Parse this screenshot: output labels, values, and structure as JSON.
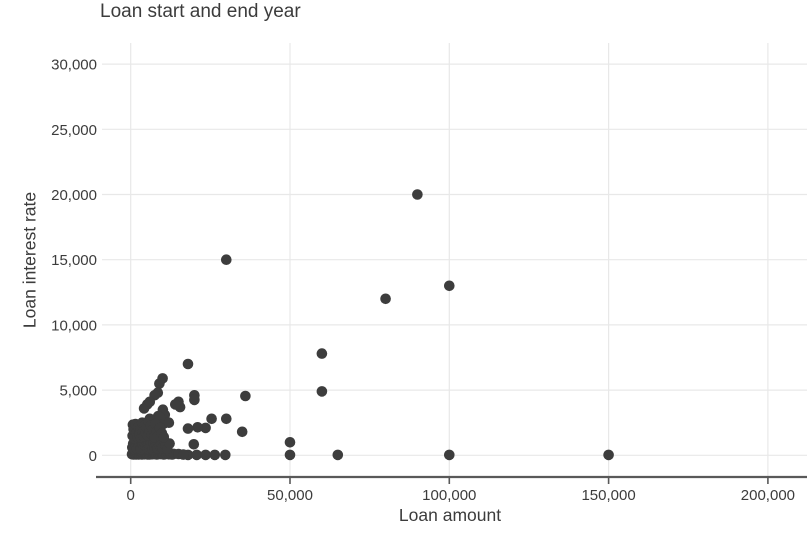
{
  "chart_data": {
    "type": "scatter",
    "title": "Loan start and end year",
    "xlabel": "Loan amount",
    "ylabel": "Loan interest rate",
    "xlim": [
      0,
      200000
    ],
    "ylim": [
      0,
      30000
    ],
    "grid": true,
    "legend": false,
    "x_tick_values": [
      0,
      50000,
      100000,
      150000,
      200000
    ],
    "x_tick_labels": [
      "0",
      "50,000",
      "100,000",
      "150,000",
      "200,000"
    ],
    "y_tick_values": [
      0,
      5000,
      10000,
      15000,
      20000,
      25000,
      30000
    ],
    "y_tick_labels": [
      "0",
      "5,000",
      "10,000",
      "15,000",
      "20,000",
      "25,000",
      "30,000"
    ],
    "colors": {
      "point": "#3d3d3d",
      "grid": "#e8e8e8",
      "axis": "#595959",
      "text": "#3c3c3c",
      "background": "#ffffff"
    },
    "points": [
      [
        90000,
        20000
      ],
      [
        30000,
        15000
      ],
      [
        100000,
        13000
      ],
      [
        80000,
        12000
      ],
      [
        60000,
        7800
      ],
      [
        60000,
        4900
      ],
      [
        50000,
        1000
      ],
      [
        50000,
        30
      ],
      [
        65000,
        30
      ],
      [
        100000,
        30
      ],
      [
        150000,
        30
      ],
      [
        36000,
        4550
      ],
      [
        30000,
        2800
      ],
      [
        25400,
        2800
      ],
      [
        35000,
        1800
      ],
      [
        23500,
        2100
      ],
      [
        21000,
        2150
      ],
      [
        18000,
        2050
      ],
      [
        20000,
        4600
      ],
      [
        20000,
        4250
      ],
      [
        19800,
        840
      ],
      [
        18000,
        30
      ],
      [
        20700,
        30
      ],
      [
        23500,
        30
      ],
      [
        26400,
        30
      ],
      [
        29700,
        30
      ],
      [
        18000,
        7000
      ],
      [
        15000,
        4100
      ],
      [
        15500,
        3700
      ],
      [
        14000,
        3900
      ],
      [
        10000,
        5900
      ],
      [
        9000,
        5500
      ],
      [
        8500,
        4800
      ],
      [
        7500,
        4600
      ],
      [
        5200,
        3900
      ],
      [
        4200,
        3600
      ],
      [
        6000,
        4100
      ],
      [
        10100,
        3500
      ],
      [
        10700,
        3100
      ],
      [
        8600,
        3000
      ],
      [
        9200,
        2900
      ],
      [
        10200,
        2400
      ],
      [
        12000,
        2500
      ],
      [
        6000,
        2800
      ],
      [
        400,
        80
      ],
      [
        700,
        150
      ],
      [
        900,
        60
      ],
      [
        1100,
        200
      ],
      [
        1300,
        90
      ],
      [
        1500,
        250
      ],
      [
        1700,
        60
      ],
      [
        1900,
        180
      ],
      [
        2100,
        100
      ],
      [
        2300,
        240
      ],
      [
        2500,
        70
      ],
      [
        2700,
        160
      ],
      [
        2900,
        90
      ],
      [
        3100,
        220
      ],
      [
        3300,
        130
      ],
      [
        3500,
        60
      ],
      [
        3700,
        200
      ],
      [
        3900,
        110
      ],
      [
        4100,
        260
      ],
      [
        4300,
        80
      ],
      [
        4500,
        170
      ],
      [
        4700,
        100
      ],
      [
        4900,
        230
      ],
      [
        5100,
        140
      ],
      [
        5300,
        70
      ],
      [
        5500,
        210
      ],
      [
        5700,
        120
      ],
      [
        5900,
        60
      ],
      [
        6100,
        190
      ],
      [
        6300,
        100
      ],
      [
        6500,
        250
      ],
      [
        6700,
        80
      ],
      [
        6900,
        160
      ],
      [
        7100,
        110
      ],
      [
        7300,
        230
      ],
      [
        7500,
        90
      ],
      [
        7700,
        180
      ],
      [
        7900,
        130
      ],
      [
        8200,
        70
      ],
      [
        8500,
        200
      ],
      [
        8800,
        110
      ],
      [
        9100,
        240
      ],
      [
        9400,
        90
      ],
      [
        9700,
        170
      ],
      [
        10000,
        120
      ],
      [
        10400,
        60
      ],
      [
        10800,
        200
      ],
      [
        11200,
        100
      ],
      [
        11600,
        160
      ],
      [
        12000,
        80
      ],
      [
        12500,
        140
      ],
      [
        13000,
        60
      ],
      [
        13500,
        110
      ],
      [
        15000,
        100
      ],
      [
        16500,
        50
      ],
      [
        500,
        600
      ],
      [
        800,
        900
      ],
      [
        1100,
        450
      ],
      [
        1400,
        1100
      ],
      [
        1700,
        700
      ],
      [
        2000,
        500
      ],
      [
        2300,
        1000
      ],
      [
        2600,
        650
      ],
      [
        2900,
        850
      ],
      [
        3200,
        480
      ],
      [
        3500,
        1150
      ],
      [
        3800,
        750
      ],
      [
        4100,
        550
      ],
      [
        4400,
        950
      ],
      [
        4700,
        680
      ],
      [
        5000,
        1100
      ],
      [
        5300,
        500
      ],
      [
        5600,
        880
      ],
      [
        5900,
        620
      ],
      [
        6200,
        1050
      ],
      [
        6500,
        720
      ],
      [
        6800,
        480
      ],
      [
        7100,
        950
      ],
      [
        7400,
        600
      ],
      [
        7700,
        1100
      ],
      [
        8000,
        800
      ],
      [
        8400,
        520
      ],
      [
        8800,
        1000
      ],
      [
        9200,
        700
      ],
      [
        9600,
        900
      ],
      [
        10000,
        550
      ],
      [
        10500,
        1150
      ],
      [
        11000,
        750
      ],
      [
        11500,
        500
      ],
      [
        12200,
        900
      ],
      [
        600,
        1500
      ],
      [
        700,
        2350
      ],
      [
        900,
        2000
      ],
      [
        1200,
        1300
      ],
      [
        1500,
        2400
      ],
      [
        1800,
        1700
      ],
      [
        2100,
        1400
      ],
      [
        2400,
        2200
      ],
      [
        2700,
        1600
      ],
      [
        3000,
        2000
      ],
      [
        3300,
        1350
      ],
      [
        3600,
        2500
      ],
      [
        3900,
        1800
      ],
      [
        4200,
        1450
      ],
      [
        4500,
        2300
      ],
      [
        4800,
        1700
      ],
      [
        5100,
        2100
      ],
      [
        5400,
        1500
      ],
      [
        5700,
        2600
      ],
      [
        6000,
        1900
      ],
      [
        6300,
        2300
      ],
      [
        6600,
        1600
      ],
      [
        7000,
        2000
      ],
      [
        7400,
        1400
      ],
      [
        7800,
        2400
      ],
      [
        8200,
        1800
      ],
      [
        8700,
        1500
      ],
      [
        9200,
        2100
      ],
      [
        9800,
        1700
      ],
      [
        10400,
        1400
      ]
    ]
  }
}
